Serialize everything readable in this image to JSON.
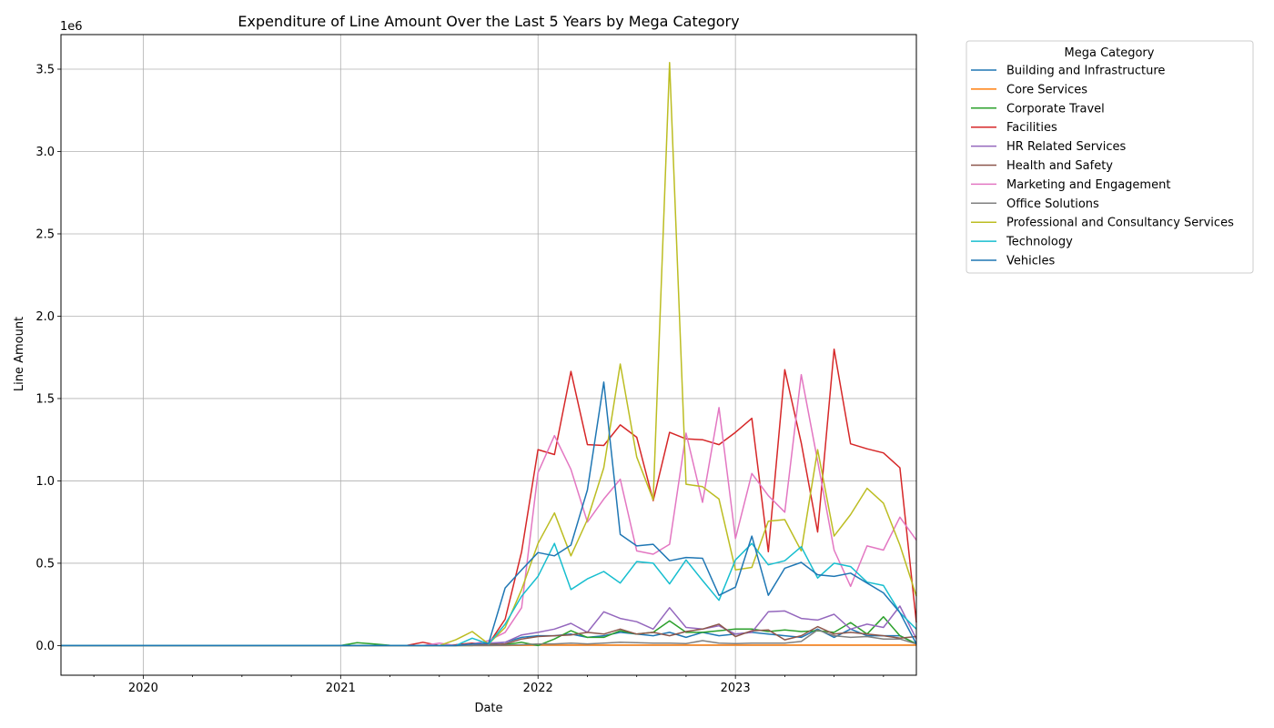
{
  "chart_data": {
    "type": "line",
    "title": "Expenditure of Line Amount Over the Last 5 Years by Mega Category",
    "xlabel": "Date",
    "ylabel": "Line Amount",
    "y_offset_label": "1e6",
    "x_ticks": [
      "2020",
      "2021",
      "2022",
      "2023"
    ],
    "y_ticks": [
      "0.0",
      "0.5",
      "1.0",
      "1.5",
      "2.0",
      "2.5",
      "3.0",
      "3.5"
    ],
    "xlim": [
      "2019-08",
      "2023-12"
    ],
    "ylim": [
      -180000,
      3710000
    ],
    "grid": true,
    "legend_title": "Mega Category",
    "legend_position": "outside-right",
    "x": [
      "2019-08",
      "2019-09",
      "2019-10",
      "2019-11",
      "2019-12",
      "2020-01",
      "2020-02",
      "2020-03",
      "2020-04",
      "2020-05",
      "2020-06",
      "2020-07",
      "2020-08",
      "2020-09",
      "2020-10",
      "2020-11",
      "2020-12",
      "2021-01",
      "2021-02",
      "2021-03",
      "2021-04",
      "2021-05",
      "2021-06",
      "2021-07",
      "2021-08",
      "2021-09",
      "2021-10",
      "2021-11",
      "2021-12",
      "2022-01",
      "2022-02",
      "2022-03",
      "2022-04",
      "2022-05",
      "2022-06",
      "2022-07",
      "2022-08",
      "2022-09",
      "2022-10",
      "2022-11",
      "2022-12",
      "2023-01",
      "2023-02",
      "2023-03",
      "2023-04",
      "2023-05",
      "2023-06",
      "2023-07",
      "2023-08",
      "2023-09",
      "2023-10",
      "2023-11",
      "2023-12"
    ],
    "series": [
      {
        "name": "Building and Infrastructure",
        "color": "#1f77b4",
        "values": [
          0,
          0,
          0,
          0,
          0,
          0,
          0,
          0,
          0,
          0,
          0,
          0,
          0,
          0,
          0,
          0,
          0,
          0,
          0,
          0,
          0,
          0,
          0,
          0,
          0,
          5000,
          10000,
          20000,
          50000,
          60000,
          60000,
          70000,
          50000,
          60000,
          80000,
          70000,
          60000,
          80000,
          50000,
          80000,
          60000,
          70000,
          80000,
          70000,
          60000,
          50000,
          100000,
          50000,
          100000,
          60000,
          60000,
          60000,
          10000
        ]
      },
      {
        "name": "Core Services",
        "color": "#ff7f0e",
        "values": [
          0,
          0,
          0,
          0,
          0,
          0,
          0,
          0,
          0,
          0,
          0,
          0,
          0,
          0,
          0,
          0,
          0,
          0,
          0,
          0,
          0,
          0,
          0,
          0,
          0,
          0,
          0,
          0,
          2000,
          3000,
          3000,
          3000,
          3000,
          3000,
          3000,
          3000,
          3000,
          3000,
          3000,
          3000,
          3000,
          3000,
          3000,
          3000,
          3000,
          3000,
          3000,
          3000,
          3000,
          3000,
          3000,
          3000,
          3000
        ]
      },
      {
        "name": "Corporate Travel",
        "color": "#2ca02c",
        "values": [
          0,
          0,
          0,
          0,
          0,
          0,
          0,
          0,
          0,
          0,
          0,
          0,
          0,
          0,
          0,
          0,
          0,
          0,
          18000,
          10000,
          2000,
          0,
          0,
          0,
          0,
          0,
          10000,
          5000,
          20000,
          0,
          40000,
          90000,
          50000,
          50000,
          90000,
          70000,
          80000,
          150000,
          80000,
          80000,
          90000,
          100000,
          100000,
          85000,
          95000,
          85000,
          90000,
          80000,
          140000,
          70000,
          175000,
          60000,
          10000
        ]
      },
      {
        "name": "Facilities",
        "color": "#d62728",
        "values": [
          0,
          0,
          0,
          0,
          0,
          0,
          0,
          0,
          0,
          0,
          0,
          0,
          0,
          0,
          0,
          0,
          0,
          0,
          0,
          0,
          0,
          0,
          20000,
          0,
          5000,
          15000,
          10000,
          160000,
          570000,
          1190000,
          1160000,
          1665000,
          1220000,
          1215000,
          1340000,
          1265000,
          880000,
          1295000,
          1255000,
          1250000,
          1220000,
          1295000,
          1380000,
          570000,
          1675000,
          1230000,
          690000,
          1800000,
          1225000,
          1195000,
          1170000,
          1080000,
          140000
        ]
      },
      {
        "name": "HR Related Services",
        "color": "#9467bd",
        "values": [
          0,
          0,
          0,
          0,
          0,
          0,
          0,
          0,
          0,
          0,
          0,
          0,
          0,
          0,
          0,
          0,
          0,
          0,
          0,
          0,
          0,
          0,
          0,
          0,
          0,
          5000,
          15000,
          20000,
          65000,
          80000,
          100000,
          135000,
          80000,
          205000,
          165000,
          145000,
          100000,
          230000,
          110000,
          100000,
          120000,
          70000,
          80000,
          205000,
          210000,
          165000,
          155000,
          190000,
          100000,
          130000,
          110000,
          240000,
          40000
        ]
      },
      {
        "name": "Health and Safety",
        "color": "#8c564b",
        "values": [
          0,
          0,
          0,
          0,
          0,
          0,
          0,
          0,
          0,
          0,
          0,
          0,
          0,
          0,
          0,
          0,
          0,
          0,
          0,
          0,
          0,
          0,
          0,
          0,
          0,
          2000,
          5000,
          10000,
          40000,
          55000,
          60000,
          65000,
          80000,
          70000,
          100000,
          70000,
          80000,
          60000,
          85000,
          100000,
          130000,
          55000,
          90000,
          95000,
          35000,
          60000,
          115000,
          70000,
          80000,
          70000,
          60000,
          45000,
          55000
        ]
      },
      {
        "name": "Marketing and Engagement",
        "color": "#e377c2",
        "values": [
          0,
          0,
          0,
          0,
          0,
          0,
          0,
          0,
          0,
          0,
          0,
          0,
          0,
          0,
          0,
          0,
          0,
          0,
          0,
          0,
          0,
          0,
          0,
          15000,
          0,
          10000,
          30000,
          80000,
          230000,
          1050000,
          1275000,
          1070000,
          750000,
          890000,
          1010000,
          575000,
          555000,
          615000,
          1290000,
          870000,
          1445000,
          650000,
          1045000,
          910000,
          810000,
          1645000,
          1120000,
          580000,
          360000,
          605000,
          580000,
          780000,
          640000
        ]
      },
      {
        "name": "Office Solutions",
        "color": "#7f7f7f",
        "values": [
          0,
          0,
          0,
          0,
          0,
          0,
          0,
          0,
          0,
          0,
          0,
          0,
          0,
          0,
          0,
          0,
          0,
          0,
          0,
          0,
          0,
          0,
          0,
          0,
          0,
          0,
          0,
          2000,
          5000,
          10000,
          10000,
          15000,
          10000,
          15000,
          20000,
          18000,
          15000,
          15000,
          12000,
          30000,
          15000,
          12000,
          15000,
          15000,
          15000,
          25000,
          95000,
          60000,
          50000,
          55000,
          40000,
          40000,
          10000
        ]
      },
      {
        "name": "Professional and Consultancy Services",
        "color": "#bcbd22",
        "values": [
          0,
          0,
          0,
          0,
          0,
          0,
          0,
          0,
          0,
          0,
          0,
          0,
          0,
          0,
          0,
          0,
          0,
          0,
          0,
          0,
          0,
          0,
          0,
          0,
          35000,
          85000,
          10000,
          110000,
          340000,
          620000,
          805000,
          545000,
          765000,
          1080000,
          1710000,
          1145000,
          885000,
          3540000,
          980000,
          965000,
          890000,
          460000,
          475000,
          755000,
          765000,
          575000,
          1190000,
          665000,
          795000,
          955000,
          865000,
          610000,
          300000
        ]
      },
      {
        "name": "Technology",
        "color": "#17becf",
        "values": [
          0,
          0,
          0,
          0,
          0,
          0,
          0,
          0,
          0,
          0,
          0,
          0,
          0,
          0,
          0,
          0,
          0,
          0,
          0,
          0,
          0,
          0,
          0,
          0,
          0,
          45000,
          10000,
          130000,
          300000,
          420000,
          620000,
          340000,
          405000,
          450000,
          380000,
          510000,
          500000,
          375000,
          520000,
          395000,
          275000,
          520000,
          620000,
          490000,
          515000,
          600000,
          410000,
          500000,
          480000,
          385000,
          365000,
          200000,
          100000
        ]
      },
      {
        "name": "Vehicles",
        "color": "#1f77b4",
        "values": [
          0,
          0,
          0,
          0,
          0,
          0,
          0,
          0,
          0,
          0,
          0,
          0,
          0,
          0,
          0,
          0,
          0,
          0,
          0,
          0,
          0,
          0,
          0,
          0,
          0,
          10000,
          15000,
          350000,
          460000,
          565000,
          545000,
          610000,
          945000,
          1600000,
          675000,
          605000,
          615000,
          515000,
          535000,
          530000,
          305000,
          355000,
          665000,
          305000,
          470000,
          505000,
          430000,
          420000,
          440000,
          380000,
          320000,
          200000,
          10000
        ]
      }
    ]
  }
}
